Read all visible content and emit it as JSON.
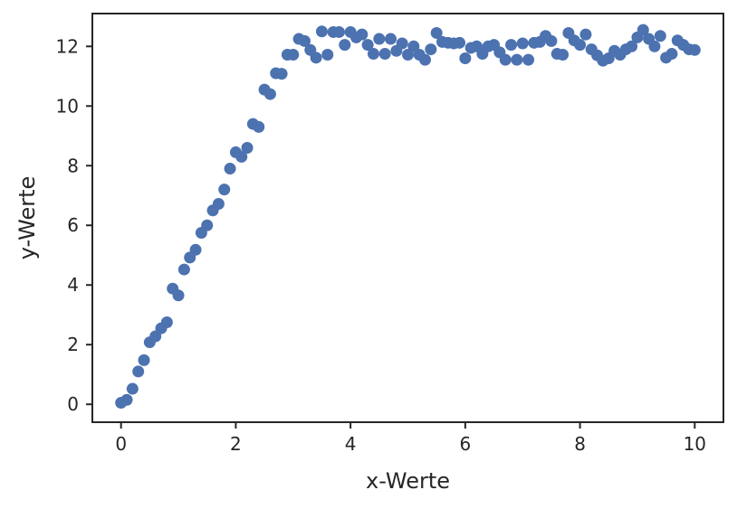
{
  "chart_data": {
    "type": "scatter",
    "xlabel": "x-Werte",
    "ylabel": "y-Werte",
    "xlim": [
      -0.5,
      10.5
    ],
    "ylim": [
      -0.6,
      13.1
    ],
    "xticks": [
      0,
      2,
      4,
      6,
      8,
      10
    ],
    "yticks": [
      0,
      2,
      4,
      6,
      8,
      10,
      12
    ],
    "grid": false,
    "marker_color": "#4c72b0",
    "axis_color": "#262626",
    "series": [
      {
        "x": [
          0.0,
          0.1,
          0.2,
          0.3,
          0.4,
          0.5,
          0.6,
          0.7,
          0.8,
          0.9,
          1.0,
          1.1,
          1.2,
          1.3,
          1.4,
          1.5,
          1.6,
          1.7,
          1.8,
          1.9,
          2.0,
          2.1,
          2.2,
          2.3,
          2.4,
          2.5,
          2.6,
          2.7,
          2.8,
          2.9,
          3.0,
          3.1,
          3.2,
          3.3,
          3.4,
          3.5,
          3.6,
          3.7,
          3.8,
          3.9,
          4.0,
          4.1,
          4.2,
          4.3,
          4.4,
          4.5,
          4.6,
          4.7,
          4.8,
          4.9,
          5.0,
          5.1,
          5.2,
          5.3,
          5.4,
          5.5,
          5.6,
          5.7,
          5.8,
          5.9,
          6.0,
          6.1,
          6.2,
          6.3,
          6.4,
          6.5,
          6.6,
          6.7,
          6.8,
          6.9,
          7.0,
          7.1,
          7.2,
          7.3,
          7.4,
          7.5,
          7.6,
          7.7,
          7.8,
          7.9,
          8.0,
          8.1,
          8.2,
          8.3,
          8.4,
          8.5,
          8.6,
          8.7,
          8.8,
          8.9,
          9.0,
          9.1,
          9.2,
          9.3,
          9.4,
          9.5,
          9.6,
          9.7,
          9.8,
          9.9,
          10.0
        ],
        "y": [
          0.05,
          0.15,
          0.52,
          1.1,
          1.48,
          2.08,
          2.28,
          2.55,
          2.75,
          3.88,
          3.65,
          4.52,
          4.92,
          5.18,
          5.75,
          6.0,
          6.5,
          6.72,
          7.2,
          7.9,
          8.45,
          8.3,
          8.6,
          9.4,
          9.3,
          10.55,
          10.4,
          11.1,
          11.08,
          11.72,
          11.72,
          12.25,
          12.18,
          11.88,
          11.62,
          12.5,
          11.72,
          12.48,
          12.48,
          12.05,
          12.48,
          12.3,
          12.4,
          12.05,
          11.75,
          12.25,
          11.75,
          12.25,
          11.85,
          12.1,
          11.72,
          12.0,
          11.72,
          11.55,
          11.9,
          12.45,
          12.15,
          12.12,
          12.1,
          12.12,
          11.6,
          11.95,
          12.0,
          11.75,
          12.0,
          12.05,
          11.8,
          11.55,
          12.05,
          11.55,
          12.1,
          11.55,
          12.12,
          12.15,
          12.35,
          12.18,
          11.75,
          11.72,
          12.45,
          12.2,
          12.05,
          12.4,
          11.9,
          11.7,
          11.52,
          11.6,
          11.85,
          11.72,
          11.9,
          12.0,
          12.3,
          12.55,
          12.25,
          12.0,
          12.35,
          11.62,
          11.75,
          12.2,
          12.05,
          11.9,
          11.88
        ]
      }
    ]
  }
}
